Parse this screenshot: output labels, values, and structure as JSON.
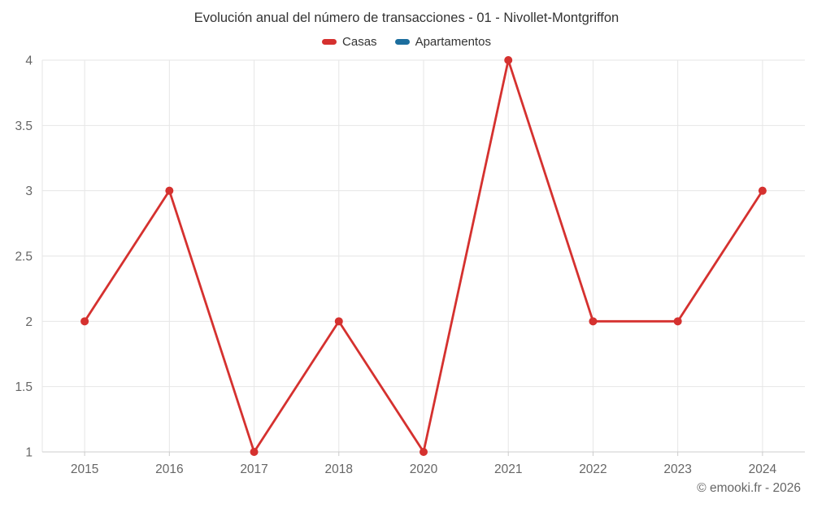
{
  "chart_data": {
    "type": "line",
    "title": "Evolución anual del número de transacciones - 01 - Nivollet-Montgriffon",
    "categories": [
      "2015",
      "2016",
      "2017",
      "2018",
      "2020",
      "2021",
      "2022",
      "2023",
      "2024"
    ],
    "series": [
      {
        "name": "Casas",
        "color": "#d5312f",
        "values": [
          2,
          3,
          1,
          2,
          1,
          4,
          2,
          2,
          3
        ]
      },
      {
        "name": "Apartamentos",
        "color": "#1c6e9e",
        "values": []
      }
    ],
    "xlabel": "",
    "ylabel": "",
    "ylim": [
      1,
      4
    ],
    "yticks": [
      1,
      1.5,
      2,
      2.5,
      3,
      3.5,
      4
    ],
    "grid": true,
    "legend_position": "top",
    "colors": {
      "grid_line": "#e6e6e6",
      "axis_line": "#cccccc",
      "tick_label": "#666666",
      "title_text": "#333333"
    }
  },
  "footer": {
    "credit": "© emooki.fr - 2026"
  }
}
